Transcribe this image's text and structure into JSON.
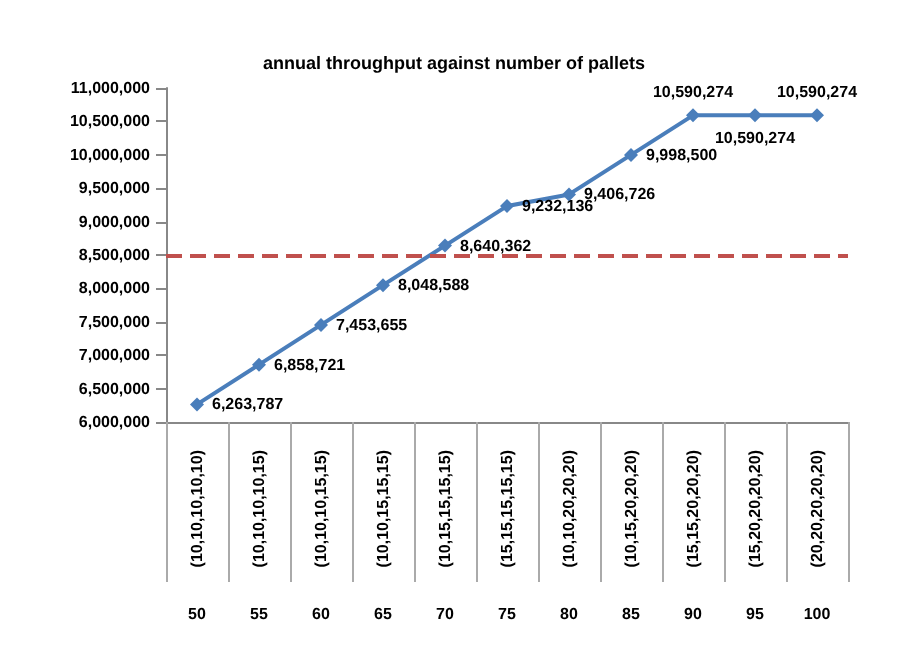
{
  "chart_data": {
    "type": "line",
    "title": "annual throughput against number of pallets",
    "categories": [
      "(10,10,10,10,10)",
      "(10,10,10,10,15)",
      "(10,10,10,15,15)",
      "(10,10,15,15,15)",
      "(10,15,15,15,15)",
      "(15,15,15,15,15)",
      "(10,10,20,20,20)",
      "(10,15,20,20,20)",
      "(15,15,20,20,20)",
      "(15,20,20,20,20)",
      "(20,20,20,20,20)"
    ],
    "series": [
      {
        "color": "#4a7ebb",
        "values": [
          6263787,
          6858721,
          7453655,
          8048588,
          8640362,
          9232136,
          9406726,
          9998500,
          10590274,
          10590274,
          10590274
        ],
        "value_labels": [
          "6,263,787",
          "6,858,721",
          "7,453,655",
          "8,048,588",
          "8,640,362",
          "9,232,136",
          "9,406,726",
          "9,998,500",
          "10,590,274",
          "10,590,274",
          "10,590,274"
        ]
      }
    ],
    "annotations": [
      "50",
      "55",
      "60",
      "65",
      "70",
      "75",
      "80",
      "85",
      "90",
      "95",
      "100"
    ],
    "ylim": [
      6000000,
      11000000
    ],
    "yticks": [
      {
        "value": 6000000,
        "label": "6,000,000"
      },
      {
        "value": 6500000,
        "label": "6,500,000"
      },
      {
        "value": 7000000,
        "label": "7,000,000"
      },
      {
        "value": 7500000,
        "label": "7,500,000"
      },
      {
        "value": 8000000,
        "label": "8,000,000"
      },
      {
        "value": 8500000,
        "label": "8,500,000"
      },
      {
        "value": 9000000,
        "label": "9,000,000"
      },
      {
        "value": 9500000,
        "label": "9,500,000"
      },
      {
        "value": 10000000,
        "label": "10,000,000"
      },
      {
        "value": 10500000,
        "label": "10,500,000"
      },
      {
        "value": 11000000,
        "label": "11,000,000"
      }
    ],
    "ref_lines": [
      {
        "axis": "y",
        "value": 8500000,
        "color": "#c0504d",
        "line_style": "dashed"
      }
    ],
    "marker": "diamond",
    "line_style": "solid"
  }
}
